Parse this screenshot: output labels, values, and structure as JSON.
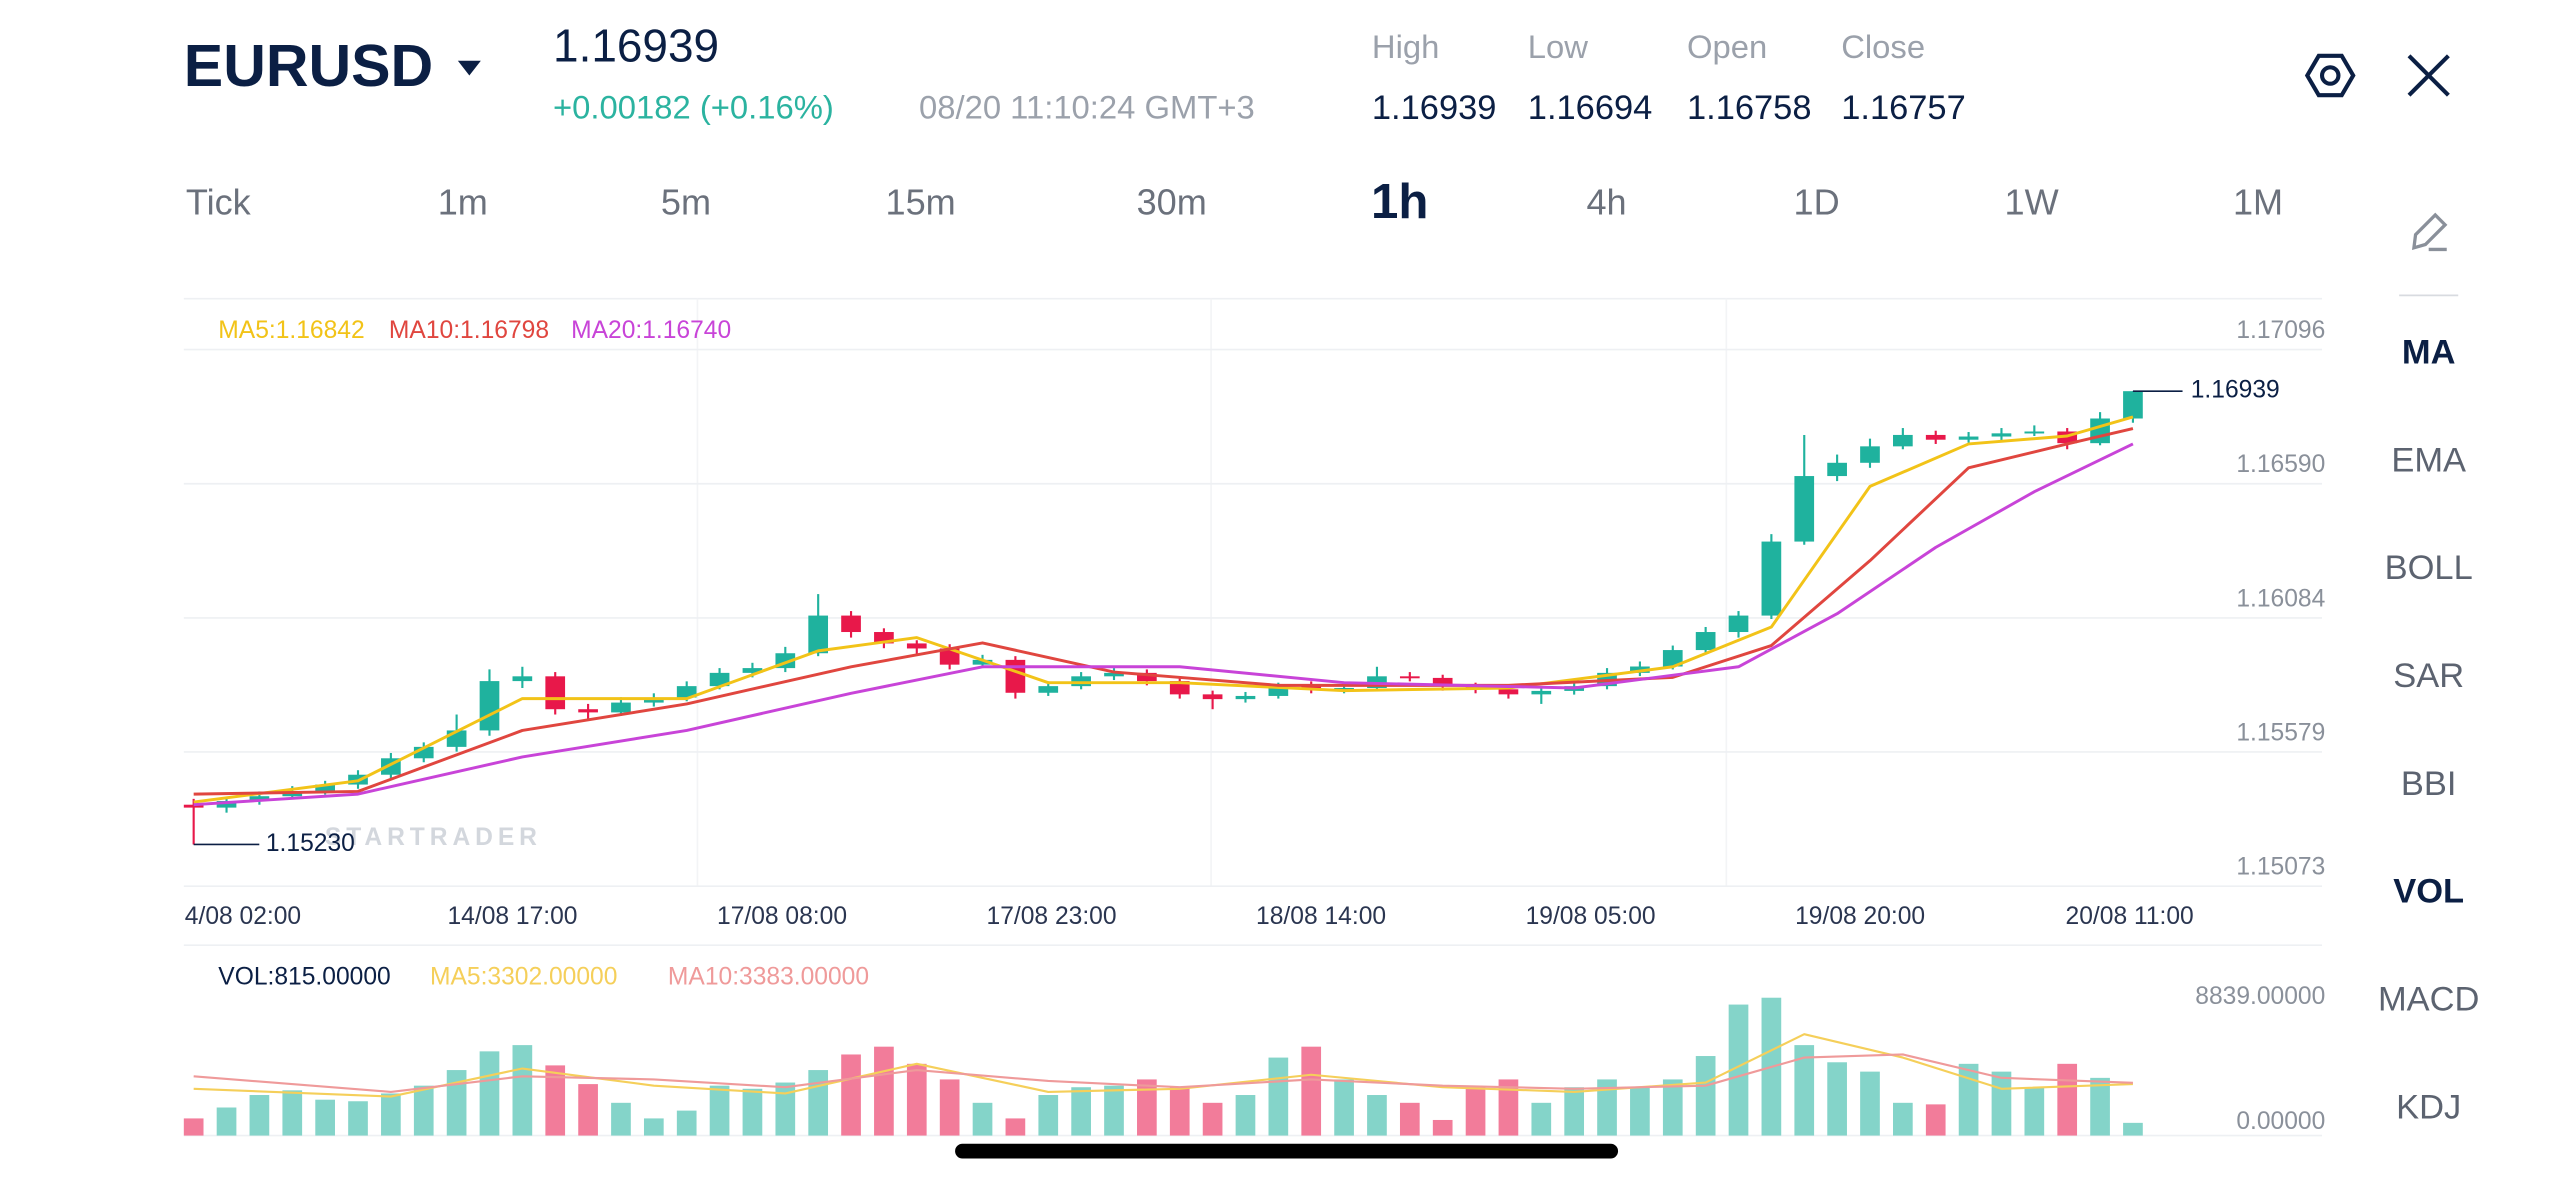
{
  "header": {
    "symbol": "EURUSD",
    "price": "1.16939",
    "change": "+0.00182 (+0.16%)",
    "time": "08/20 11:10:24 GMT+3",
    "stats": [
      {
        "label": "High",
        "value": "1.16939"
      },
      {
        "label": "Low",
        "value": "1.16694"
      },
      {
        "label": "Open",
        "value": "1.16758"
      },
      {
        "label": "Close",
        "value": "1.16757"
      }
    ]
  },
  "timeframes": {
    "items": [
      "Tick",
      "1m",
      "5m",
      "15m",
      "30m",
      "1h",
      "4h",
      "1D",
      "1W",
      "1M"
    ],
    "active": "1h"
  },
  "indicators": {
    "items": [
      "MA",
      "EMA",
      "BOLL",
      "SAR",
      "BBI",
      "VOL",
      "MACD",
      "KDJ"
    ],
    "active": [
      "MA",
      "VOL"
    ]
  },
  "watermark": "STARTRADER",
  "chart_data": {
    "type": "candlestick",
    "ohlc": [
      [
        1.1538,
        1.15402,
        1.1523,
        1.15369
      ],
      [
        1.15369,
        1.1541,
        1.1535,
        1.15394
      ],
      [
        1.15394,
        1.1543,
        1.1538,
        1.15412
      ],
      [
        1.15412,
        1.1545,
        1.154,
        1.15431
      ],
      [
        1.15431,
        1.1547,
        1.15418,
        1.15456
      ],
      [
        1.15456,
        1.1551,
        1.1544,
        1.15493
      ],
      [
        1.15493,
        1.15575,
        1.1548,
        1.15555
      ],
      [
        1.15555,
        1.15615,
        1.1554,
        1.15598
      ],
      [
        1.15598,
        1.1572,
        1.1558,
        1.1566
      ],
      [
        1.1566,
        1.1589,
        1.1564,
        1.15846
      ],
      [
        1.15846,
        1.159,
        1.1582,
        1.15864
      ],
      [
        1.15864,
        1.1588,
        1.1572,
        1.1574
      ],
      [
        1.1574,
        1.1576,
        1.157,
        1.15728
      ],
      [
        1.15728,
        1.15785,
        1.15715,
        1.15765
      ],
      [
        1.15765,
        1.158,
        1.1575,
        1.15784
      ],
      [
        1.15784,
        1.15845,
        1.1577,
        1.15827
      ],
      [
        1.15827,
        1.15895,
        1.15815,
        1.15877
      ],
      [
        1.15877,
        1.15915,
        1.1586,
        1.15895
      ],
      [
        1.15895,
        1.15975,
        1.1588,
        1.15951
      ],
      [
        1.15951,
        1.16174,
        1.1594,
        1.16093
      ],
      [
        1.16093,
        1.1611,
        1.1601,
        1.16031
      ],
      [
        1.16031,
        1.16045,
        1.1597,
        1.15988
      ],
      [
        1.15988,
        1.16,
        1.1595,
        1.15969
      ],
      [
        1.15969,
        1.15985,
        1.1589,
        1.15908
      ],
      [
        1.15908,
        1.15945,
        1.15895,
        1.15926
      ],
      [
        1.15926,
        1.1594,
        1.1578,
        1.15802
      ],
      [
        1.15802,
        1.15845,
        1.1579,
        1.15827
      ],
      [
        1.15827,
        1.1588,
        1.15815,
        1.15864
      ],
      [
        1.15864,
        1.15895,
        1.1585,
        1.15877
      ],
      [
        1.15877,
        1.1589,
        1.1583,
        1.15846
      ],
      [
        1.15846,
        1.1586,
        1.1578,
        1.15796
      ],
      [
        1.15796,
        1.1581,
        1.1574,
        1.15778
      ],
      [
        1.15778,
        1.15805,
        1.15765,
        1.1579
      ],
      [
        1.1579,
        1.1584,
        1.1578,
        1.15827
      ],
      [
        1.15827,
        1.15845,
        1.158,
        1.15815
      ],
      [
        1.15815,
        1.15835,
        1.158,
        1.1582
      ],
      [
        1.1582,
        1.159,
        1.1581,
        1.15864
      ],
      [
        1.15864,
        1.1588,
        1.15845,
        1.15858
      ],
      [
        1.15858,
        1.1587,
        1.1581,
        1.15827
      ],
      [
        1.15827,
        1.1584,
        1.158,
        1.15815
      ],
      [
        1.15815,
        1.1583,
        1.1578,
        1.15796
      ],
      [
        1.15796,
        1.1582,
        1.1576,
        1.15809
      ],
      [
        1.15809,
        1.15845,
        1.15795,
        1.15827
      ],
      [
        1.15827,
        1.15895,
        1.15815,
        1.15877
      ],
      [
        1.15877,
        1.1592,
        1.15865,
        1.15901
      ],
      [
        1.15901,
        1.1598,
        1.1589,
        1.15963
      ],
      [
        1.15963,
        1.1605,
        1.1595,
        1.16031
      ],
      [
        1.16031,
        1.1611,
        1.1601,
        1.16093
      ],
      [
        1.16093,
        1.164,
        1.1608,
        1.16372
      ],
      [
        1.16372,
        1.16774,
        1.1636,
        1.16619
      ],
      [
        1.16619,
        1.167,
        1.166,
        1.16669
      ],
      [
        1.16669,
        1.1676,
        1.1665,
        1.16731
      ],
      [
        1.16731,
        1.168,
        1.1672,
        1.16774
      ],
      [
        1.16774,
        1.1679,
        1.1674,
        1.16756
      ],
      [
        1.16756,
        1.16785,
        1.16745,
        1.16768
      ],
      [
        1.16768,
        1.168,
        1.16755,
        1.1678
      ],
      [
        1.1678,
        1.1681,
        1.1677,
        1.16787
      ],
      [
        1.16787,
        1.168,
        1.1672,
        1.16743
      ],
      [
        1.16743,
        1.1686,
        1.16735,
        1.16836
      ],
      [
        1.16836,
        1.16939,
        1.1682,
        1.16939
      ]
    ],
    "up_color": "#1fb29e",
    "down_color": "#e8184a",
    "ylim": [
      1.15073,
      1.17096
    ],
    "yticks": [
      1.17096,
      {
        "value": 1.1659,
        "label": "1.16590"
      },
      1.16084,
      1.15579,
      1.15073
    ],
    "xticks": [
      {
        "value": 1.5,
        "label": "4/08 02:00"
      },
      {
        "value": 9.7,
        "label": "14/08 17:00"
      },
      {
        "value": 17.9,
        "label": "17/08 08:00"
      },
      {
        "value": 26.1,
        "label": "17/08 23:00"
      },
      {
        "value": 34.3,
        "label": "18/08 14:00"
      },
      {
        "value": 42.5,
        "label": "19/08 05:00"
      },
      {
        "value": 50.7,
        "label": "19/08 20:00"
      },
      {
        "value": 58.9,
        "label": "20/08 11:00"
      }
    ],
    "grid": true,
    "ma": [
      {
        "label": "MA5:1.16842",
        "color": "#f2c318",
        "x": [
          0,
          5,
          10,
          15,
          19,
          22,
          26,
          30,
          35,
          40,
          45,
          48,
          51,
          54,
          57,
          59
        ],
        "values": [
          1.1539,
          1.1547,
          1.1578,
          1.1578,
          1.1596,
          1.1601,
          1.1584,
          1.1584,
          1.1581,
          1.1582,
          1.159,
          1.1605,
          1.1658,
          1.1674,
          1.1677,
          1.16842
        ]
      },
      {
        "label": "MA10:1.16798",
        "color": "#e0463f",
        "x": [
          0,
          5,
          10,
          15,
          20,
          24,
          28,
          33,
          40,
          45,
          48,
          51,
          54,
          57,
          59
        ],
        "values": [
          1.1542,
          1.1543,
          1.1566,
          1.1576,
          1.159,
          1.1599,
          1.1588,
          1.1583,
          1.1583,
          1.1586,
          1.1598,
          1.163,
          1.1665,
          1.1674,
          1.16798
        ]
      },
      {
        "label": "MA20:1.16740",
        "color": "#c844d8",
        "x": [
          0,
          5,
          10,
          15,
          20,
          24,
          30,
          35,
          42,
          47,
          50,
          53,
          56,
          59
        ],
        "values": [
          1.1538,
          1.1542,
          1.1556,
          1.1566,
          1.158,
          1.159,
          1.159,
          1.1584,
          1.1582,
          1.159,
          1.161,
          1.1635,
          1.1656,
          1.1674
        ]
      }
    ],
    "last_price": 1.16939,
    "low_price": {
      "value": 1.1523,
      "label": "1.15230"
    },
    "volume": {
      "label": "VOL:815.00000",
      "values": [
        1100,
        1800,
        2600,
        2900,
        2300,
        2200,
        2700,
        3200,
        4200,
        5400,
        5800,
        4500,
        3300,
        2100,
        1100,
        1600,
        3200,
        3000,
        3400,
        4200,
        5200,
        5700,
        4600,
        3600,
        2100,
        1100,
        2600,
        3100,
        3200,
        3600,
        3100,
        2100,
        2600,
        5000,
        5700,
        3600,
        2600,
        2100,
        1000,
        3100,
        3600,
        2100,
        3100,
        3600,
        3100,
        3600,
        5100,
        8400,
        8839,
        5800,
        4700,
        4100,
        2100,
        2000,
        4600,
        4100,
        3100,
        4600,
        3700,
        815
      ],
      "up_color": "#84d4c9",
      "down_color": "#f27c9a",
      "ylim": [
        0,
        8839
      ],
      "yticks": [
        {
          "value": 8839,
          "label": "8839.00000"
        },
        {
          "value": 0,
          "label": "0.00000"
        }
      ],
      "ma": [
        {
          "label": "MA5:3302.00000",
          "color": "#f5cf5a",
          "x": [
            0,
            6,
            10,
            14,
            18,
            22,
            26,
            30,
            34,
            38,
            42,
            46,
            49,
            52,
            55,
            59
          ],
          "values": [
            3000,
            2500,
            4300,
            3200,
            2700,
            4600,
            2800,
            3000,
            3900,
            3100,
            2800,
            3400,
            6500,
            5000,
            3000,
            3302
          ]
        },
        {
          "label": "MA10:3383.00000",
          "color": "#ef9a9a",
          "x": [
            0,
            6,
            10,
            14,
            18,
            22,
            26,
            30,
            34,
            38,
            42,
            46,
            49,
            52,
            55,
            59
          ],
          "values": [
            3800,
            2800,
            3800,
            3600,
            3100,
            4200,
            3500,
            3100,
            3600,
            3200,
            3000,
            3200,
            5000,
            5200,
            3700,
            3383
          ]
        }
      ]
    }
  }
}
